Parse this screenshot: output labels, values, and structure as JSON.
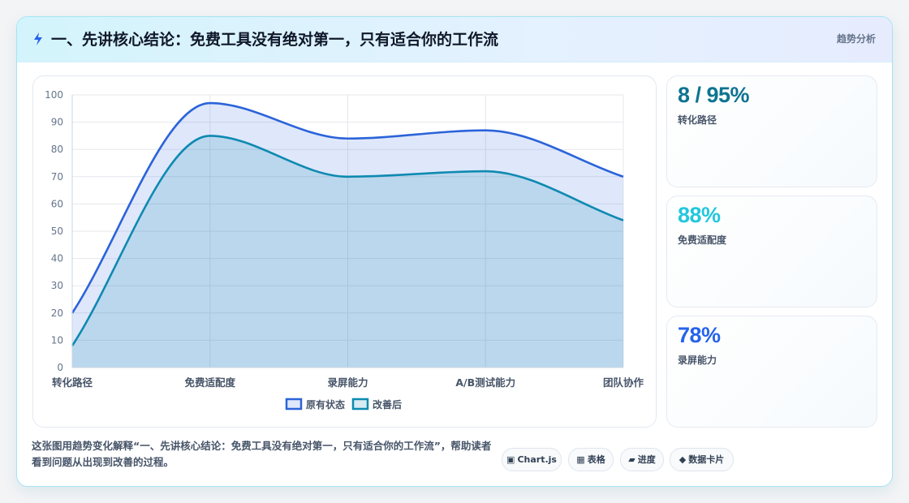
{
  "header": {
    "title": "一、先讲核心结论：免费工具没有绝对第一，只有适合你的工作流",
    "tag": "趋势分析"
  },
  "kpis": [
    {
      "value": "8 / 95%",
      "label": "转化路径",
      "color": "#0e7490"
    },
    {
      "value": "88%",
      "label": "免费适配度",
      "color": "#22c7dd"
    },
    {
      "value": "78%",
      "label": "录屏能力",
      "color": "#2563eb"
    }
  ],
  "footer": {
    "description": "这张图用趋势变化解释“一、先讲核心结论：免费工具没有绝对第一，只有适合你的工作流”，帮助读者看到问题从出现到改善的过程。",
    "chips": [
      {
        "icon": "▣",
        "icon_name": "chart-icon",
        "label": "Chart.js"
      },
      {
        "icon": "▦",
        "icon_name": "table-icon",
        "label": "表格"
      },
      {
        "icon": "▰",
        "icon_name": "progress-icon",
        "label": "进度"
      },
      {
        "icon": "◆",
        "icon_name": "card-icon",
        "label": "数据卡片"
      }
    ]
  },
  "chart_data": {
    "type": "area",
    "categories": [
      "转化路径",
      "免费适配度",
      "录屏能力",
      "A/B测试能力",
      "团队协作"
    ],
    "series": [
      {
        "name": "原有状态",
        "values": [
          20,
          97,
          84,
          87,
          70
        ],
        "color": "#2b63d9",
        "fill": "rgba(66,111,230,0.17)"
      },
      {
        "name": "改善后",
        "values": [
          8,
          85,
          70,
          72,
          54
        ],
        "color": "#0e8ab0",
        "fill": "rgba(14,138,176,0.17)"
      }
    ],
    "ylim": [
      0,
      100
    ],
    "yticks": [
      0,
      10,
      20,
      30,
      40,
      50,
      60,
      70,
      80,
      90,
      100
    ],
    "grid": true,
    "legend_position": "bottom"
  }
}
